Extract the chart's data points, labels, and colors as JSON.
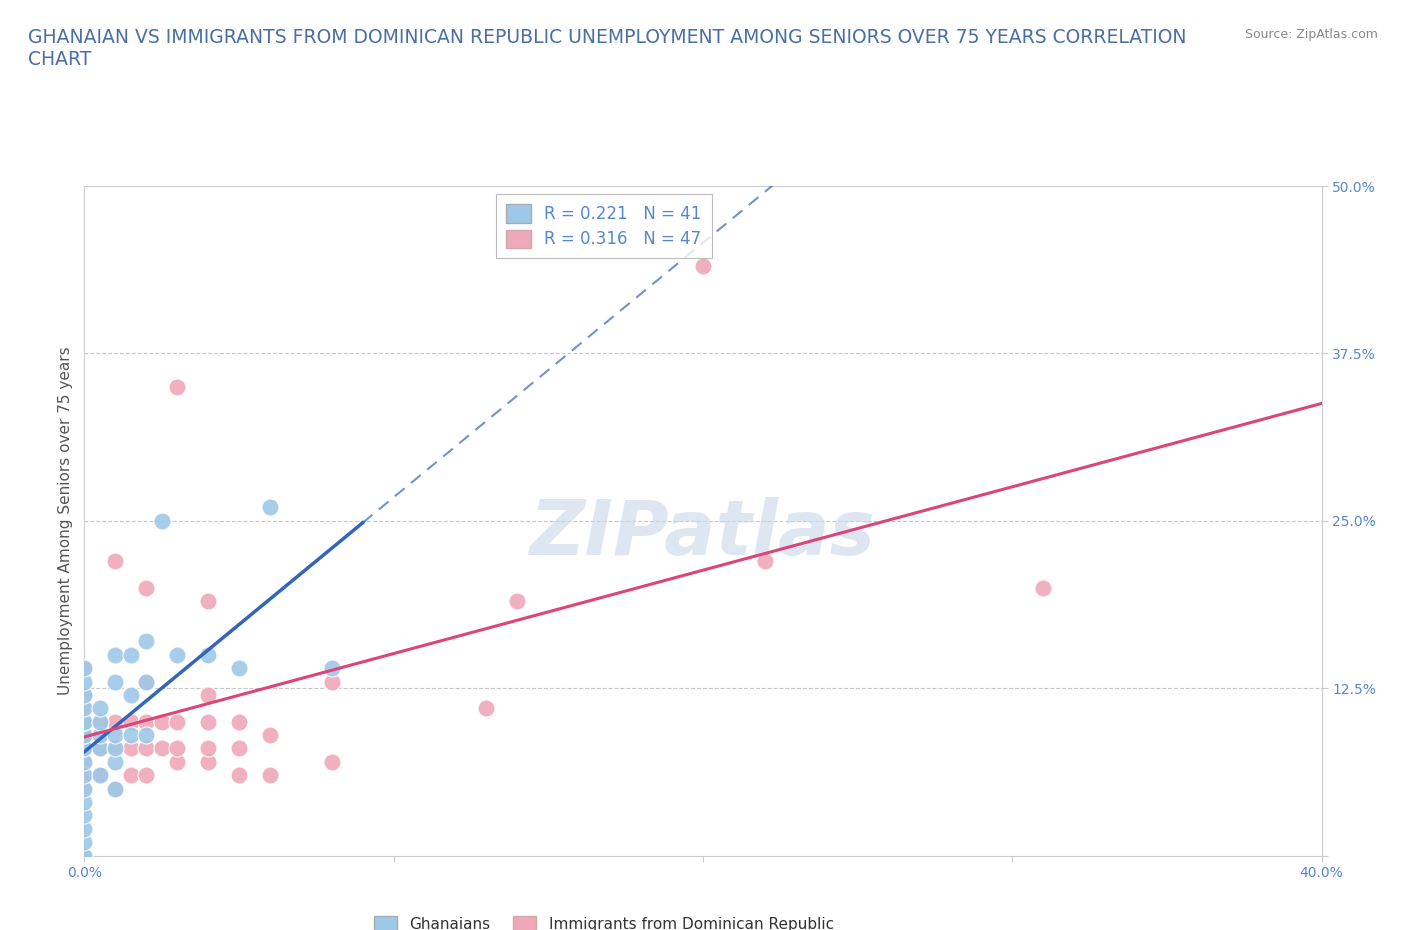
{
  "title": "GHANAIAN VS IMMIGRANTS FROM DOMINICAN REPUBLIC UNEMPLOYMENT AMONG SENIORS OVER 75 YEARS CORRELATION\nCHART",
  "source_text": "Source: ZipAtlas.com",
  "ylabel": "Unemployment Among Seniors over 75 years",
  "xlim": [
    0.0,
    0.4
  ],
  "ylim": [
    0.0,
    0.5
  ],
  "background_color": "#ffffff",
  "watermark": "ZIPatlas",
  "watermark_color": "#c8d8e8",
  "grid_color": "#c8c8c8",
  "title_color": "#4a6fa5",
  "axis_color": "#5588cc",
  "blue_color": "#9ec8e8",
  "pink_color": "#f0a8b8",
  "blue_line_color": "#3366bb",
  "pink_line_color": "#dd4477",
  "R_blue": 0.221,
  "N_blue": 41,
  "R_pink": 0.316,
  "N_pink": 47,
  "ghanaian_x": [
    0.0,
    0.0,
    0.0,
    0.0,
    0.0,
    0.0,
    0.0,
    0.0,
    0.0,
    0.0,
    0.0,
    0.0,
    0.0,
    0.0,
    0.0,
    0.0,
    0.0,
    0.0,
    0.005,
    0.005,
    0.005,
    0.005,
    0.005,
    0.01,
    0.01,
    0.01,
    0.01,
    0.01,
    0.01,
    0.015,
    0.015,
    0.015,
    0.02,
    0.02,
    0.02,
    0.025,
    0.03,
    0.04,
    0.05,
    0.06,
    0.08
  ],
  "ghanaian_y": [
    0.0,
    0.0,
    0.01,
    0.02,
    0.03,
    0.04,
    0.05,
    0.06,
    0.07,
    0.08,
    0.09,
    0.09,
    0.1,
    0.1,
    0.11,
    0.12,
    0.13,
    0.14,
    0.06,
    0.08,
    0.09,
    0.1,
    0.11,
    0.05,
    0.07,
    0.08,
    0.09,
    0.13,
    0.15,
    0.09,
    0.12,
    0.15,
    0.09,
    0.13,
    0.16,
    0.25,
    0.15,
    0.15,
    0.14,
    0.26,
    0.14
  ],
  "dominican_x": [
    0.0,
    0.0,
    0.0,
    0.0,
    0.0,
    0.0,
    0.0,
    0.0,
    0.0,
    0.005,
    0.005,
    0.005,
    0.01,
    0.01,
    0.01,
    0.01,
    0.015,
    0.015,
    0.015,
    0.02,
    0.02,
    0.02,
    0.02,
    0.02,
    0.025,
    0.025,
    0.03,
    0.03,
    0.03,
    0.03,
    0.04,
    0.04,
    0.04,
    0.04,
    0.04,
    0.05,
    0.05,
    0.05,
    0.06,
    0.06,
    0.08,
    0.08,
    0.13,
    0.14,
    0.2,
    0.22,
    0.31
  ],
  "dominican_y": [
    0.05,
    0.06,
    0.07,
    0.08,
    0.09,
    0.1,
    0.11,
    0.12,
    0.14,
    0.06,
    0.08,
    0.1,
    0.05,
    0.08,
    0.1,
    0.22,
    0.06,
    0.08,
    0.1,
    0.06,
    0.08,
    0.1,
    0.13,
    0.2,
    0.08,
    0.1,
    0.07,
    0.08,
    0.1,
    0.35,
    0.07,
    0.08,
    0.1,
    0.12,
    0.19,
    0.06,
    0.08,
    0.1,
    0.06,
    0.09,
    0.07,
    0.13,
    0.11,
    0.19,
    0.44,
    0.22,
    0.2
  ]
}
